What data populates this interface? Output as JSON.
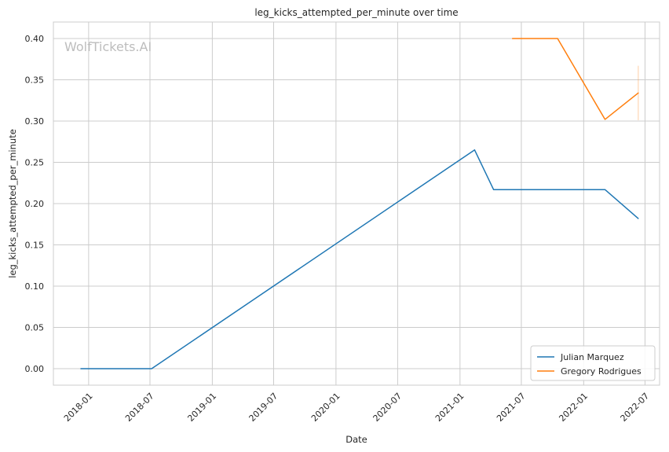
{
  "chart_data": {
    "type": "line",
    "title": "leg_kicks_attempted_per_minute over time",
    "xlabel": "Date",
    "ylabel": "leg_kicks_attempted_per_minute",
    "watermark": "WolfTickets.AI",
    "xlim": [
      "2017-09-19",
      "2022-08-13"
    ],
    "ylim": [
      -0.02,
      0.42
    ],
    "x_ticks": [
      "2018-01",
      "2018-07",
      "2019-01",
      "2019-07",
      "2020-01",
      "2020-07",
      "2021-01",
      "2021-07",
      "2022-01",
      "2022-07"
    ],
    "y_ticks": [
      "0.00",
      "0.05",
      "0.10",
      "0.15",
      "0.20",
      "0.25",
      "0.30",
      "0.35",
      "0.40"
    ],
    "grid": true,
    "legend_position": "lower-right",
    "series": [
      {
        "name": "Julian Marquez",
        "color": "#1f77b4",
        "x": [
          "2017-12-09",
          "2018-07-06",
          "2021-02-13",
          "2021-04-10",
          "2022-03-05",
          "2022-06-11"
        ],
        "y": [
          0.0,
          0.0,
          0.265,
          0.217,
          0.217,
          0.182
        ]
      },
      {
        "name": "Gregory Rodrigues",
        "color": "#ff7f0e",
        "x": [
          "2021-06-05",
          "2021-10-16",
          "2022-03-05",
          "2022-06-11"
        ],
        "y": [
          0.4,
          0.4,
          0.302,
          0.334
        ],
        "error_band": {
          "x": "2022-06-11",
          "low": 0.301,
          "high": 0.367
        }
      }
    ]
  }
}
